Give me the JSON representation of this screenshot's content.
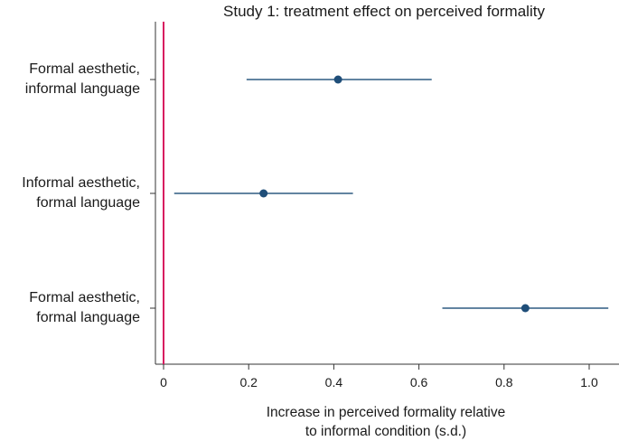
{
  "chart_data": {
    "type": "forest",
    "title": "Study 1: treatment effect on perceived formality",
    "xlabel": [
      "Increase in perceived formality relative",
      "to informal condition (s.d.)"
    ],
    "ylabel": "",
    "xlim": [
      -0.02,
      1.07
    ],
    "xticks": [
      0,
      0.2,
      0.4,
      0.6,
      0.8,
      1.0
    ],
    "xtick_labels": [
      "0",
      "0.2",
      "0.4",
      "0.6",
      "0.8",
      "1.0"
    ],
    "reference_line": 0,
    "categories": [
      [
        "Formal aesthetic,",
        "informal language"
      ],
      [
        "Informal aesthetic,",
        "formal language"
      ],
      [
        "Formal aesthetic,",
        "formal language"
      ]
    ],
    "estimates": [
      0.41,
      0.235,
      0.85
    ],
    "ci_lower": [
      0.195,
      0.025,
      0.655
    ],
    "ci_upper": [
      0.63,
      0.445,
      1.045
    ],
    "colors": {
      "point": "#1f4e79",
      "ci": "#2e5b82",
      "reference": "#d81b60",
      "axis": "#333333"
    }
  }
}
